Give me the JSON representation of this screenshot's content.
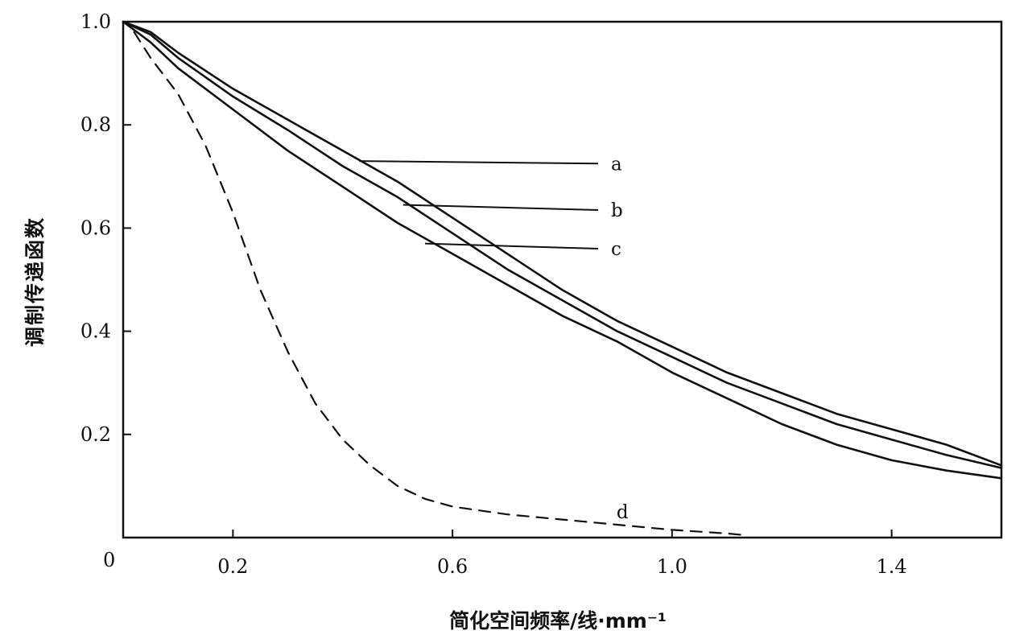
{
  "chart_data": {
    "type": "line",
    "xlabel": "简化空间频率/线·mm⁻¹",
    "ylabel": "调制传递函数",
    "xlim": [
      0,
      1.6
    ],
    "ylim": [
      0,
      1.0
    ],
    "origin_label": "0",
    "x_ticks": [
      {
        "value": 0.2,
        "label": "0.2"
      },
      {
        "value": 0.6,
        "label": "0.6"
      },
      {
        "value": 1.0,
        "label": "1.0"
      },
      {
        "value": 1.4,
        "label": "1.4"
      }
    ],
    "y_ticks": [
      {
        "value": 0.2,
        "label": "0.2"
      },
      {
        "value": 0.4,
        "label": "0.4"
      },
      {
        "value": 0.6,
        "label": "0.6"
      },
      {
        "value": 0.8,
        "label": "0.8"
      },
      {
        "value": 1.0,
        "label": "1.0"
      }
    ],
    "grid": false,
    "legend": "inline-labels",
    "series": [
      {
        "name": "a",
        "style": "solid",
        "x": [
          0.0,
          0.05,
          0.1,
          0.2,
          0.3,
          0.4,
          0.5,
          0.6,
          0.7,
          0.8,
          0.9,
          1.0,
          1.1,
          1.2,
          1.3,
          1.4,
          1.5,
          1.6
        ],
        "y": [
          1.0,
          0.98,
          0.94,
          0.87,
          0.81,
          0.75,
          0.69,
          0.62,
          0.55,
          0.48,
          0.42,
          0.37,
          0.32,
          0.28,
          0.24,
          0.21,
          0.18,
          0.14
        ],
        "label_value": [
          0.88,
          0.725
        ],
        "pointer_end": [
          0.43,
          0.73
        ]
      },
      {
        "name": "b",
        "style": "solid",
        "x": [
          0.0,
          0.05,
          0.1,
          0.2,
          0.3,
          0.4,
          0.5,
          0.6,
          0.7,
          0.8,
          0.9,
          1.0,
          1.1,
          1.2,
          1.3,
          1.4,
          1.5,
          1.6
        ],
        "y": [
          1.0,
          0.975,
          0.93,
          0.855,
          0.79,
          0.72,
          0.66,
          0.59,
          0.52,
          0.46,
          0.4,
          0.35,
          0.3,
          0.26,
          0.22,
          0.19,
          0.16,
          0.135
        ],
        "label_value": [
          0.88,
          0.635
        ],
        "pointer_end": [
          0.51,
          0.645
        ]
      },
      {
        "name": "c",
        "style": "solid",
        "x": [
          0.0,
          0.05,
          0.1,
          0.2,
          0.3,
          0.4,
          0.5,
          0.6,
          0.7,
          0.8,
          0.9,
          1.0,
          1.1,
          1.2,
          1.3,
          1.4,
          1.5,
          1.6
        ],
        "y": [
          1.0,
          0.96,
          0.91,
          0.83,
          0.75,
          0.68,
          0.61,
          0.55,
          0.49,
          0.43,
          0.38,
          0.32,
          0.27,
          0.22,
          0.18,
          0.15,
          0.13,
          0.115
        ],
        "label_value": [
          0.88,
          0.56
        ],
        "pointer_end": [
          0.55,
          0.57
        ]
      },
      {
        "name": "d",
        "style": "dashed",
        "x": [
          0.02,
          0.05,
          0.1,
          0.15,
          0.2,
          0.25,
          0.3,
          0.35,
          0.4,
          0.45,
          0.5,
          0.55,
          0.6,
          0.7,
          0.8,
          0.9,
          1.0,
          1.1,
          1.13
        ],
        "y": [
          0.98,
          0.93,
          0.86,
          0.76,
          0.63,
          0.48,
          0.36,
          0.26,
          0.19,
          0.14,
          0.1,
          0.075,
          0.06,
          0.045,
          0.035,
          0.025,
          0.015,
          0.008,
          0.005
        ],
        "label_value": [
          0.89,
          0.05
        ]
      }
    ]
  }
}
